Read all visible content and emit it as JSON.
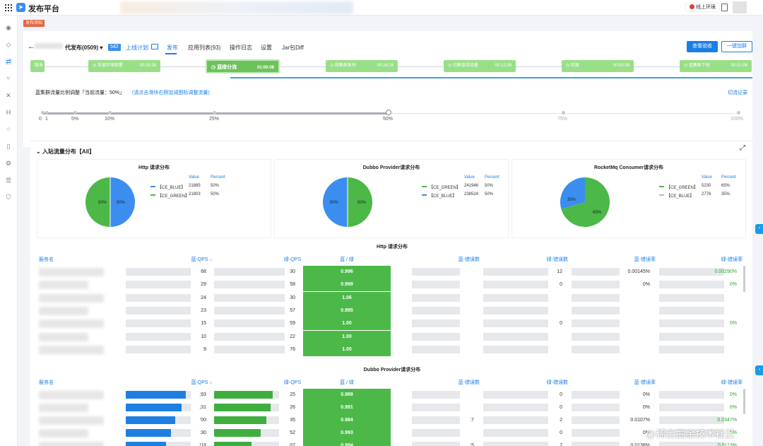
{
  "app": {
    "title": "发布平台",
    "logo_icon": "send-icon",
    "env_label": "线上环境"
  },
  "warn_tag": "发布须知",
  "project": {
    "name": "代发布(0509)",
    "version": "542",
    "plan_link": "上线计划"
  },
  "tabs": [
    {
      "label": "发布",
      "active": true
    },
    {
      "label": "应用列表(93)",
      "active": false
    },
    {
      "label": "操作日志",
      "active": false
    },
    {
      "label": "设置",
      "active": false
    },
    {
      "label": "Jar包Diff",
      "active": false
    }
  ],
  "buttons": {
    "primary": "查看验收",
    "secondary": "一键加群"
  },
  "pipeline": [
    {
      "label": "版本检查",
      "time": ""
    },
    {
      "label": "灰度环境部署",
      "time": "00:18:28"
    },
    {
      "label": "蓝绿分流",
      "time": "01:00:08"
    },
    {
      "label": "绿集群发布",
      "time": "00:28:18"
    },
    {
      "label": "切换蓝绿流量",
      "time": "00:12:28"
    },
    {
      "label": "回滚",
      "time": "00:00:38"
    },
    {
      "label": "蓝集群下线",
      "time": "00:01:08"
    }
  ],
  "ratio": {
    "label": "蓝集群流量比例调整「当前流量：50%」",
    "hint": "(请点击滑块右侧加减图标调整流量)",
    "switch_record": "切流记录",
    "current_percent": 50,
    "ticks": [
      "0",
      "1",
      "5%",
      "10%",
      "25%",
      "50%",
      "75%",
      "100%"
    ]
  },
  "flow": {
    "title": "入站流量分布【All】"
  },
  "pies": [
    {
      "title": "Http 请求分布",
      "value_head": "Value",
      "percent_head": "Percent",
      "rows": [
        {
          "name": "【CE_BLUE】",
          "value": "21885",
          "percent": "50%",
          "color": "#3b8ef0"
        },
        {
          "name": "【CE_GREEN】",
          "value": "21803",
          "percent": "50%",
          "color": "#4cb848"
        }
      ],
      "slice_labels": [
        "50%",
        "50%"
      ]
    },
    {
      "title": "Dubbo Provider请求分布",
      "value_head": "Value",
      "percent_head": "Percent",
      "rows": [
        {
          "name": "【CE_GREEN】",
          "value": "241946",
          "percent": "50%",
          "color": "#4cb848"
        },
        {
          "name": "【CE_BLUE】",
          "value": "238524",
          "percent": "50%",
          "color": "#3b8ef0"
        }
      ],
      "slice_labels": [
        "50%",
        "50%"
      ]
    },
    {
      "title": "RocketMq Consumer请求分布",
      "value_head": "Value",
      "percent_head": "Percent",
      "rows": [
        {
          "name": "【CE_GREEN】",
          "value": "5230",
          "percent": "65%",
          "color": "#4cb848"
        },
        {
          "name": "【CE_BLUE】",
          "value": "2776",
          "percent": "35%",
          "color": "#3b8ef0"
        }
      ],
      "slice_labels": [
        "65%",
        "35%"
      ]
    }
  ],
  "http_table": {
    "title": "Http 请求分布",
    "headers": [
      "服务名",
      "蓝-QPS ↓",
      "绿-QPS",
      "蓝 / 绿",
      "蓝-错误数",
      "绿-错误数",
      "蓝-错误率",
      "绿-错误率"
    ],
    "rows": [
      {
        "blue_qps": "68",
        "green_qps": "30",
        "ratio": "0.996",
        "blue_err": "",
        "green_err": "12",
        "blue_rate": "0.00145%",
        "green_rate": "0.00290%"
      },
      {
        "blue_qps": "29",
        "green_qps": "58",
        "ratio": "0.999",
        "blue_err": "",
        "green_err": "0",
        "blue_rate": "0%",
        "green_rate": "0%"
      },
      {
        "blue_qps": "24",
        "green_qps": "30",
        "ratio": "1.06",
        "blue_err": "",
        "green_err": "",
        "blue_rate": "",
        "green_rate": ""
      },
      {
        "blue_qps": "23",
        "green_qps": "57",
        "ratio": "0.995",
        "blue_err": "",
        "green_err": "",
        "blue_rate": "",
        "green_rate": ""
      },
      {
        "blue_qps": "15",
        "green_qps": "59",
        "ratio": "1.00",
        "blue_err": "",
        "green_err": "0",
        "blue_rate": "",
        "green_rate": "0%"
      },
      {
        "blue_qps": "10",
        "green_qps": "22",
        "ratio": "1.00",
        "blue_err": "",
        "green_err": "",
        "blue_rate": "",
        "green_rate": ""
      },
      {
        "blue_qps": "9",
        "green_qps": "76",
        "ratio": "1.00",
        "blue_err": "",
        "green_err": "",
        "blue_rate": "",
        "green_rate": ""
      }
    ]
  },
  "dubbo_table": {
    "title": "Dubbo Provider请求分布",
    "headers": [
      "服务名",
      "蓝-QPS ↓",
      "绿-QPS",
      "蓝 / 绿",
      "蓝-错误数",
      "绿-错误数",
      "蓝-错误率",
      "绿-错误率"
    ],
    "rows": [
      {
        "blue_qps": ";93",
        "green_qps": "25",
        "ratio": "0.989",
        "blue_err": "",
        "green_err": "0",
        "blue_rate": "0%",
        "green_rate": "0%",
        "blue_fill": 0.92,
        "green_fill": 0.9
      },
      {
        "blue_qps": ";31",
        "green_qps": "26",
        "ratio": "0.991",
        "blue_err": "",
        "green_err": "0",
        "blue_rate": "0%",
        "green_rate": "0%",
        "blue_fill": 0.86,
        "green_fill": 0.87
      },
      {
        "blue_qps": "'00",
        "green_qps": "35",
        "ratio": "0.984",
        "blue_err": ":7",
        "green_err": "2",
        "blue_rate": "0.0107%",
        "green_rate": "0.0347%",
        "blue_fill": 0.76,
        "green_fill": 0.8
      },
      {
        "blue_qps": ":30",
        "green_qps": "52",
        "ratio": "0.993",
        "blue_err": "",
        "green_err": "0",
        "blue_rate": "0%",
        "green_rate": "0%",
        "blue_fill": 0.7,
        "green_fill": 0.72
      },
      {
        "blue_qps": "!18",
        "green_qps": "07",
        "ratio": "0.994",
        "blue_err": ":5",
        "green_err": "7",
        "blue_rate": "0.0138%",
        "green_rate": "0.0113%",
        "blue_fill": 0.62,
        "green_fill": 0.58
      }
    ]
  },
  "watermark": "@稀土掘金技术社区"
}
